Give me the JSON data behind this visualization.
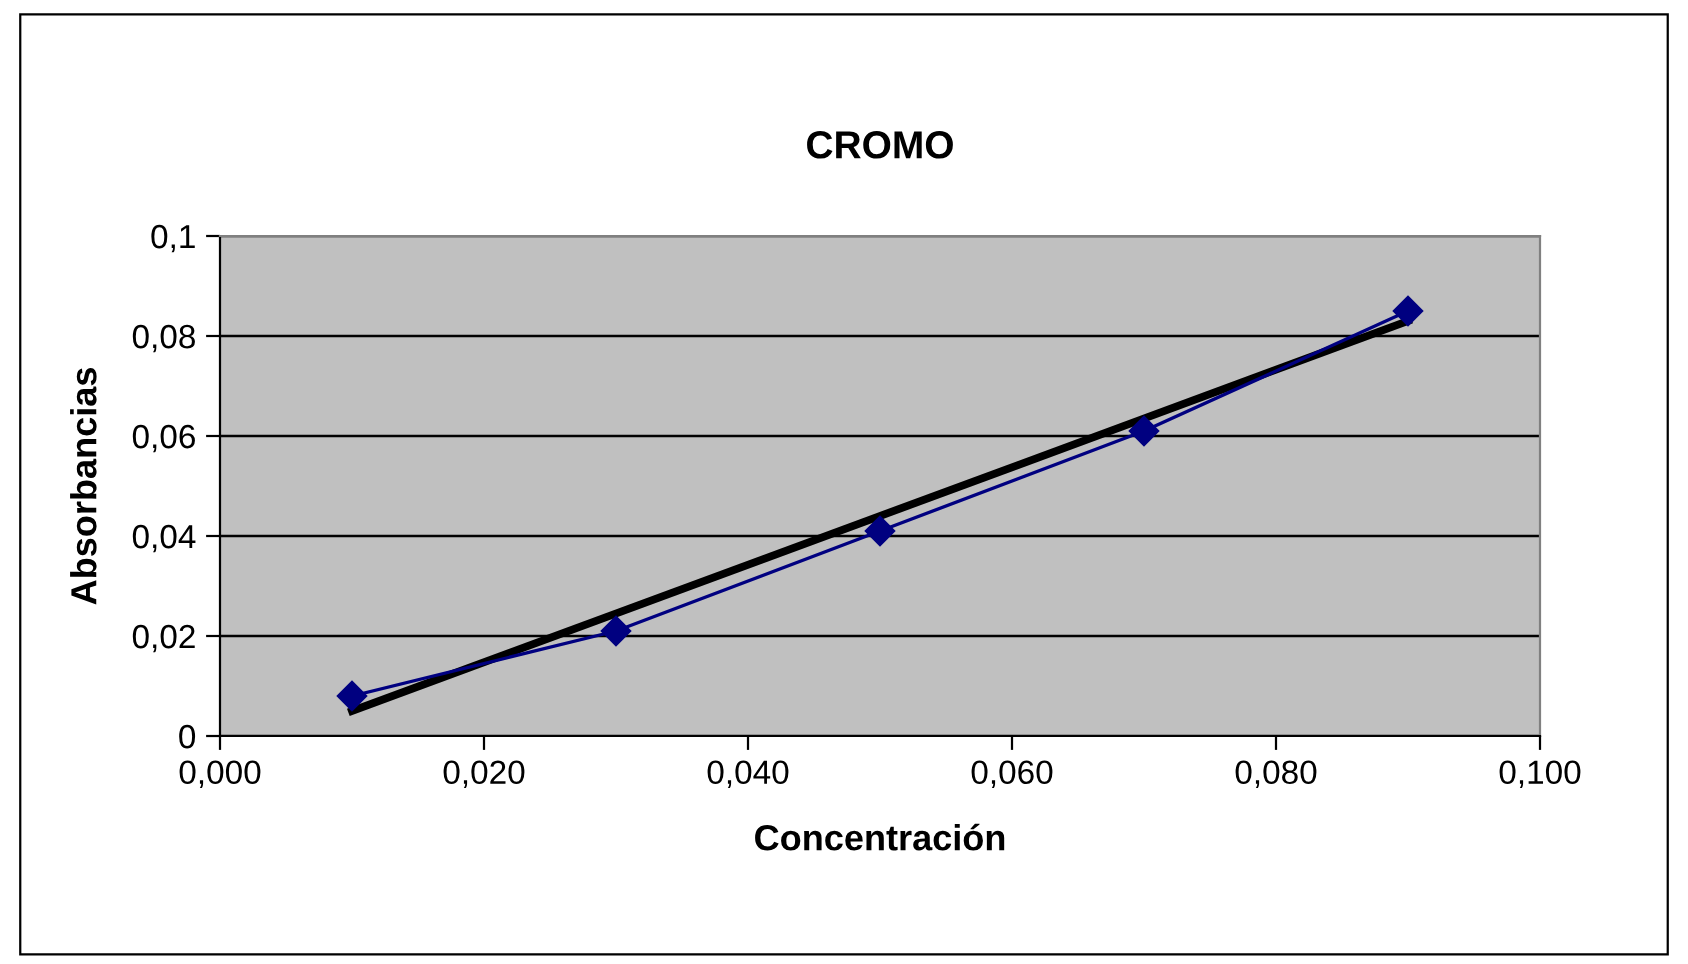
{
  "chart_data": {
    "type": "line",
    "title": "CROMO",
    "xlabel": "Concentración",
    "ylabel": "Absorbancias",
    "x": [
      0.01,
      0.03,
      0.05,
      0.07,
      0.09
    ],
    "series": [
      {
        "color": "#000080",
        "values": [
          0.008,
          0.021,
          0.041,
          0.061,
          0.085
        ],
        "marker": "diamond"
      },
      {
        "type": "line",
        "color": "#000000",
        "x": [
          0.01,
          0.09
        ],
        "values": [
          0.005,
          0.083
        ],
        "marker": "none"
      }
    ],
    "xlim": [
      0,
      0.1
    ],
    "ylim": [
      0,
      0.1
    ],
    "xticks": [
      {
        "value": 0,
        "label": "0,000"
      },
      {
        "value": 0.02,
        "label": "0,020"
      },
      {
        "value": 0.04,
        "label": "0,040"
      },
      {
        "value": 0.06,
        "label": "0,060"
      },
      {
        "value": 0.08,
        "label": "0,080"
      },
      {
        "value": 0.1,
        "label": "0,100"
      }
    ],
    "yticks": [
      0,
      {
        "value": 0.02,
        "label": "0,02"
      },
      {
        "value": 0.04,
        "label": "0,04"
      },
      {
        "value": 0.06,
        "label": "0,06"
      },
      {
        "value": 0.08,
        "label": "0,08"
      },
      {
        "value": 0.1,
        "label": "0,1"
      }
    ],
    "grid": "y",
    "legend": false
  }
}
